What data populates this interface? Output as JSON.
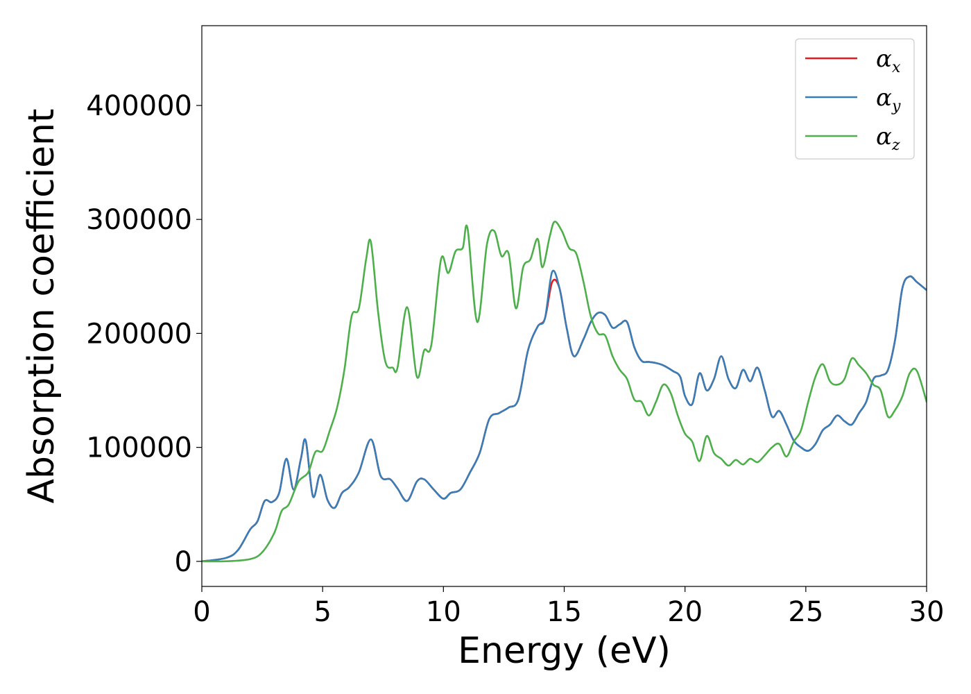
{
  "chart_data": {
    "type": "line",
    "title": "",
    "xlabel": "Energy (eV)",
    "ylabel": "Absorption coefficient",
    "xlim": [
      0,
      30
    ],
    "ylim": [
      -22000,
      470000
    ],
    "xticks": [
      0,
      5,
      10,
      15,
      20,
      25,
      30
    ],
    "yticks": [
      0,
      100000,
      200000,
      300000,
      400000
    ],
    "xtick_labels": [
      "0",
      "5",
      "10",
      "15",
      "20",
      "25",
      "30"
    ],
    "ytick_labels": [
      "0",
      "100000",
      "200000",
      "300000",
      "400000"
    ],
    "grid": false,
    "legend_position": "top-right",
    "series": [
      {
        "name": "α_x",
        "symbol": "α",
        "sub": "x",
        "color": "#e41a1c",
        "x": [
          0,
          1,
          1.5,
          2,
          2.3,
          2.6,
          2.9,
          3.2,
          3.5,
          3.8,
          4.1,
          4.3,
          4.6,
          4.9,
          5.2,
          5.5,
          5.8,
          6.1,
          6.5,
          7.0,
          7.4,
          7.8,
          8.1,
          8.5,
          8.9,
          9.2,
          9.6,
          10.0,
          10.3,
          10.7,
          11.1,
          11.5,
          11.9,
          12.3,
          12.7,
          13.1,
          13.5,
          13.9,
          14.2,
          14.5,
          14.8,
          15.1,
          15.4,
          15.8,
          16.1,
          16.4,
          16.7,
          17.0,
          17.3,
          17.6,
          17.9,
          18.2,
          18.5,
          18.8,
          19.1,
          19.5,
          19.8,
          20.0,
          20.3,
          20.6,
          20.9,
          21.2,
          21.5,
          21.8,
          22.1,
          22.4,
          22.7,
          23.0,
          23.3,
          23.6,
          23.9,
          24.2,
          24.5,
          24.8,
          25.1,
          25.4,
          25.7,
          26.0,
          26.3,
          26.6,
          26.9,
          27.2,
          27.5,
          27.8,
          28.1,
          28.4,
          28.7,
          29.0,
          29.3,
          29.6,
          30.0
        ],
        "y": [
          0,
          3000,
          10000,
          28000,
          35000,
          53000,
          52000,
          60000,
          90000,
          63000,
          90000,
          106000,
          57000,
          76000,
          54000,
          47000,
          60000,
          65000,
          78000,
          107000,
          75000,
          72000,
          64000,
          53000,
          70000,
          72000,
          63000,
          55000,
          60000,
          63000,
          78000,
          95000,
          125000,
          130000,
          135000,
          142000,
          185000,
          206000,
          213000,
          245000,
          240000,
          205000,
          180000,
          195000,
          210000,
          218000,
          216000,
          205000,
          208000,
          210000,
          188000,
          176000,
          175000,
          174000,
          172000,
          167000,
          162000,
          145000,
          138000,
          165000,
          150000,
          160000,
          180000,
          160000,
          152000,
          168000,
          158000,
          170000,
          150000,
          127000,
          132000,
          120000,
          106000,
          100000,
          97000,
          103000,
          115000,
          120000,
          128000,
          123000,
          120000,
          130000,
          140000,
          160000,
          163000,
          168000,
          195000,
          240000,
          250000,
          245000,
          238000
        ]
      },
      {
        "name": "α_y",
        "symbol": "α",
        "sub": "y",
        "color": "#377eb8",
        "x": [
          0,
          1,
          1.5,
          2,
          2.3,
          2.6,
          2.9,
          3.2,
          3.5,
          3.8,
          4.1,
          4.3,
          4.6,
          4.9,
          5.2,
          5.5,
          5.8,
          6.1,
          6.5,
          7.0,
          7.4,
          7.8,
          8.1,
          8.5,
          8.9,
          9.2,
          9.6,
          10.0,
          10.3,
          10.7,
          11.1,
          11.5,
          11.9,
          12.3,
          12.7,
          13.1,
          13.5,
          13.9,
          14.2,
          14.5,
          14.8,
          15.1,
          15.4,
          15.8,
          16.1,
          16.4,
          16.7,
          17.0,
          17.3,
          17.6,
          17.9,
          18.2,
          18.5,
          18.8,
          19.1,
          19.5,
          19.8,
          20.0,
          20.3,
          20.6,
          20.9,
          21.2,
          21.5,
          21.8,
          22.1,
          22.4,
          22.7,
          23.0,
          23.3,
          23.6,
          23.9,
          24.2,
          24.5,
          24.8,
          25.1,
          25.4,
          25.7,
          26.0,
          26.3,
          26.6,
          26.9,
          27.2,
          27.5,
          27.8,
          28.1,
          28.4,
          28.7,
          29.0,
          29.3,
          29.6,
          30.0
        ],
        "y": [
          0,
          3000,
          10000,
          28000,
          35000,
          53000,
          52000,
          60000,
          90000,
          63000,
          90000,
          106000,
          57000,
          76000,
          54000,
          47000,
          60000,
          65000,
          78000,
          107000,
          75000,
          72000,
          64000,
          53000,
          70000,
          72000,
          63000,
          55000,
          60000,
          63000,
          78000,
          95000,
          125000,
          130000,
          135000,
          142000,
          185000,
          206000,
          213000,
          254000,
          240000,
          205000,
          180000,
          195000,
          210000,
          218000,
          216000,
          205000,
          208000,
          210000,
          188000,
          176000,
          175000,
          174000,
          172000,
          167000,
          162000,
          145000,
          138000,
          165000,
          150000,
          160000,
          180000,
          160000,
          152000,
          168000,
          158000,
          170000,
          150000,
          127000,
          132000,
          120000,
          106000,
          100000,
          97000,
          103000,
          115000,
          120000,
          128000,
          123000,
          120000,
          130000,
          140000,
          160000,
          163000,
          168000,
          195000,
          240000,
          250000,
          245000,
          238000
        ]
      },
      {
        "name": "α_z",
        "symbol": "α",
        "sub": "z",
        "color": "#4daf4a",
        "x": [
          0,
          1,
          2,
          2.5,
          3.0,
          3.3,
          3.6,
          4.0,
          4.4,
          4.7,
          5.0,
          5.3,
          5.6,
          5.9,
          6.2,
          6.5,
          6.8,
          7.0,
          7.3,
          7.6,
          7.9,
          8.1,
          8.5,
          8.9,
          9.2,
          9.5,
          9.9,
          10.2,
          10.5,
          10.8,
          11.0,
          11.4,
          11.8,
          12.1,
          12.4,
          12.7,
          13.0,
          13.3,
          13.6,
          13.9,
          14.1,
          14.4,
          14.6,
          14.9,
          15.2,
          15.5,
          15.8,
          16.1,
          16.4,
          16.7,
          17.0,
          17.3,
          17.6,
          17.9,
          18.2,
          18.5,
          18.8,
          19.1,
          19.4,
          19.7,
          20.0,
          20.3,
          20.6,
          20.9,
          21.2,
          21.5,
          21.8,
          22.1,
          22.4,
          22.7,
          23.0,
          23.3,
          23.6,
          23.9,
          24.2,
          24.5,
          24.8,
          25.1,
          25.4,
          25.7,
          26.0,
          26.3,
          26.6,
          26.9,
          27.2,
          27.5,
          27.8,
          28.1,
          28.4,
          28.7,
          29.0,
          29.3,
          29.6,
          30.0
        ],
        "y": [
          0,
          100,
          2000,
          8000,
          25000,
          44000,
          50000,
          70000,
          78000,
          96000,
          97000,
          115000,
          135000,
          168000,
          215000,
          222000,
          265000,
          280000,
          218000,
          175000,
          170000,
          170000,
          223000,
          162000,
          185000,
          190000,
          265000,
          253000,
          272000,
          275000,
          292000,
          210000,
          278000,
          290000,
          268000,
          270000,
          222000,
          258000,
          265000,
          283000,
          258000,
          285000,
          298000,
          290000,
          275000,
          270000,
          245000,
          215000,
          200000,
          198000,
          180000,
          168000,
          160000,
          142000,
          140000,
          128000,
          140000,
          155000,
          148000,
          128000,
          112000,
          105000,
          88000,
          110000,
          95000,
          90000,
          84000,
          89000,
          85000,
          90000,
          87000,
          93000,
          100000,
          103000,
          92000,
          105000,
          115000,
          140000,
          162000,
          173000,
          158000,
          155000,
          160000,
          178000,
          172000,
          165000,
          155000,
          150000,
          127000,
          133000,
          145000,
          165000,
          167000,
          140000
        ]
      }
    ]
  }
}
